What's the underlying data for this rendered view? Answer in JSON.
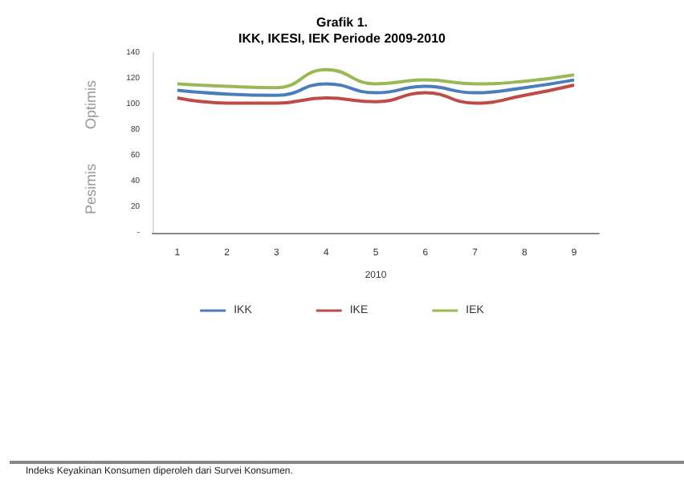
{
  "chart_data": {
    "type": "line",
    "title": "Grafik 1.\nIKK, IKESI, IEK Periode 2009-2010",
    "xlabel": "2010",
    "categories": [
      "1",
      "2",
      "3",
      "4",
      "5",
      "6",
      "7",
      "8",
      "9"
    ],
    "series": [
      {
        "name": "IKK",
        "color": "#4a7ebb",
        "values": [
          111,
          108,
          107,
          116,
          109,
          114,
          109,
          113,
          119
        ]
      },
      {
        "name": "IKE",
        "color": "#be4b48",
        "values": [
          105,
          101,
          101,
          105,
          102,
          109,
          101,
          107,
          115
        ]
      },
      {
        "name": "IEK",
        "color": "#98b954",
        "values": [
          116,
          114,
          113,
          127,
          116,
          119,
          116,
          118,
          123
        ]
      }
    ],
    "ylim": [
      0,
      140
    ],
    "yticks": [
      {
        "value": 0,
        "label": "-"
      },
      20,
      40,
      60,
      80,
      100,
      120,
      140
    ],
    "annotations": [
      "Optimis",
      "Pesimis",
      "Indeks Keyakinan Konsumen diperoleh dari Survei Konsumen."
    ],
    "grid": false,
    "legend": "bottom",
    "marker": "none",
    "line_style": "solid"
  }
}
